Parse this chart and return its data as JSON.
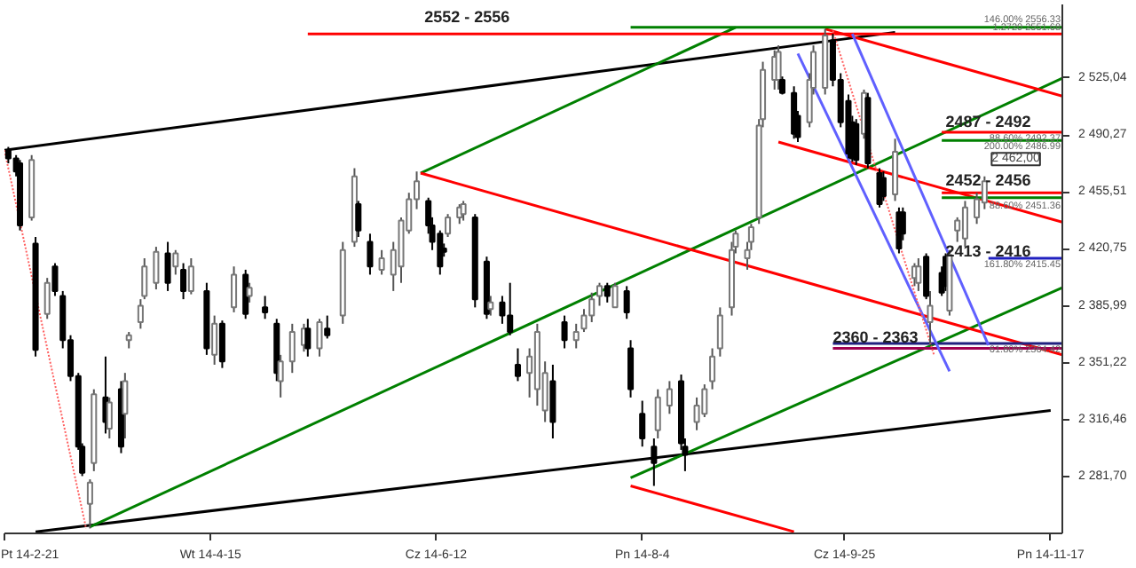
{
  "chart_data": {
    "type": "candlestick",
    "x": [
      "2014-02-22",
      "2014-02-24",
      "2014-02-25",
      "2014-02-28",
      "2014-03-01",
      "2014-03-04",
      "2014-03-06",
      "2014-03-08",
      "2014-03-10",
      "2014-03-12",
      "2014-03-13",
      "2014-03-15",
      "2014-03-16",
      "2014-03-19",
      "2014-03-20",
      "2014-03-23",
      "2014-03-24",
      "2014-03-25",
      "2014-03-28",
      "2014-03-29",
      "2014-04-01",
      "2014-04-04",
      "2014-04-06",
      "2014-04-08",
      "2014-04-10",
      "2014-04-14",
      "2014-04-16",
      "2014-04-18",
      "2014-04-21",
      "2014-04-24",
      "2014-04-25",
      "2014-04-29",
      "2014-05-02",
      "2014-05-03",
      "2014-05-06",
      "2014-05-09",
      "2014-05-10",
      "2014-05-13",
      "2014-05-15",
      "2014-05-19",
      "2014-05-22",
      "2014-05-23",
      "2014-05-26",
      "2014-05-29",
      "2014-06-01",
      "2014-06-03",
      "2014-06-05",
      "2014-06-07",
      "2014-06-10",
      "2014-06-11",
      "2014-06-13",
      "2014-06-14",
      "2014-06-15",
      "2014-06-18",
      "2014-06-19",
      "2014-06-22",
      "2014-06-25",
      "2014-06-26",
      "2014-06-29",
      "2014-07-01",
      "2014-07-03",
      "2014-07-06",
      "2014-07-08",
      "2014-07-10",
      "2014-07-12",
      "2014-07-15",
      "2014-07-18",
      "2014-07-20",
      "2014-07-22",
      "2014-07-24",
      "2014-07-26",
      "2014-07-28",
      "2014-07-31",
      "2014-08-01",
      "2014-08-04",
      "2014-08-07",
      "2014-08-08",
      "2014-08-11",
      "2014-08-14",
      "2014-08-15",
      "2014-08-18",
      "2014-08-20",
      "2014-08-22",
      "2014-08-24",
      "2014-08-27",
      "2014-08-28",
      "2014-08-31",
      "2014-09-01",
      "2014-09-03",
      "2014-09-04",
      "2014-09-07",
      "2014-09-08",
      "2014-09-09",
      "2014-09-12",
      "2014-09-13",
      "2014-09-16",
      "2014-09-17",
      "2014-09-20",
      "2014-09-22",
      "2014-09-24",
      "2014-09-26",
      "2014-09-27",
      "2014-09-28",
      "2014-09-30",
      "2014-10-01",
      "2014-10-04",
      "2014-10-05",
      "2014-10-08",
      "2014-10-09",
      "2014-10-10",
      "2014-10-13",
      "2014-10-14",
      "2014-10-16",
      "2014-10-17",
      "2014-10-20",
      "2014-10-21",
      "2014-10-22",
      "2014-10-24",
      "2014-10-26",
      "2014-10-29",
      "2014-10-31"
    ],
    "ohlc": [
      [
        2481,
        2483,
        2473,
        2476
      ],
      [
        2476,
        2478,
        2465,
        2468
      ],
      [
        2473,
        2475,
        2432,
        2435
      ],
      [
        2440,
        2478,
        2438,
        2475
      ],
      [
        2424,
        2428,
        2355,
        2359
      ],
      [
        2381,
        2403,
        2378,
        2400
      ],
      [
        2410,
        2412,
        2392,
        2395
      ],
      [
        2392,
        2395,
        2360,
        2365
      ],
      [
        2365,
        2368,
        2340,
        2343
      ],
      [
        2343,
        2345,
        2298,
        2300
      ],
      [
        2300,
        2302,
        2282,
        2284
      ],
      [
        2265,
        2280,
        2250,
        2278
      ],
      [
        2290,
        2335,
        2285,
        2332
      ],
      [
        2330,
        2355,
        2308,
        2315
      ],
      [
        2311,
        2330,
        2305,
        2327
      ],
      [
        2335,
        2340,
        2296,
        2300
      ],
      [
        2320,
        2345,
        2305,
        2340
      ],
      [
        2365,
        2370,
        2360,
        2368
      ],
      [
        2376,
        2390,
        2372,
        2386
      ],
      [
        2392,
        2415,
        2390,
        2410
      ],
      [
        2400,
        2422,
        2396,
        2419
      ],
      [
        2418,
        2425,
        2395,
        2400
      ],
      [
        2410,
        2420,
        2405,
        2418
      ],
      [
        2408,
        2412,
        2390,
        2395
      ],
      [
        2395,
        2415,
        2393,
        2410
      ],
      [
        2395,
        2400,
        2356,
        2360
      ],
      [
        2356,
        2380,
        2350,
        2375
      ],
      [
        2375,
        2377,
        2348,
        2352
      ],
      [
        2385,
        2410,
        2382,
        2405
      ],
      [
        2405,
        2408,
        2378,
        2381
      ],
      [
        2392,
        2400,
        2388,
        2397
      ],
      [
        2385,
        2392,
        2378,
        2382
      ],
      [
        2375,
        2378,
        2340,
        2345
      ],
      [
        2340,
        2356,
        2330,
        2352
      ],
      [
        2352,
        2375,
        2345,
        2370
      ],
      [
        2362,
        2375,
        2358,
        2372
      ],
      [
        2372,
        2378,
        2355,
        2360
      ],
      [
        2360,
        2378,
        2355,
        2376
      ],
      [
        2372,
        2380,
        2366,
        2368
      ],
      [
        2380,
        2425,
        2375,
        2420
      ],
      [
        2425,
        2470,
        2422,
        2465
      ],
      [
        2448,
        2450,
        2428,
        2432
      ],
      [
        2425,
        2430,
        2405,
        2410
      ],
      [
        2408,
        2420,
        2405,
        2415
      ],
      [
        2405,
        2425,
        2395,
        2420
      ],
      [
        2410,
        2440,
        2400,
        2438
      ],
      [
        2432,
        2455,
        2430,
        2451
      ],
      [
        2451,
        2468,
        2445,
        2462
      ],
      [
        2450,
        2452,
        2430,
        2435
      ],
      [
        2435,
        2440,
        2420,
        2425
      ],
      [
        2430,
        2432,
        2405,
        2410
      ],
      [
        2421,
        2424,
        2416,
        2419
      ],
      [
        2430,
        2442,
        2428,
        2440
      ],
      [
        2440,
        2448,
        2436,
        2446
      ],
      [
        2442,
        2450,
        2438,
        2448
      ],
      [
        2440,
        2442,
        2385,
        2390
      ],
      [
        2413,
        2416,
        2378,
        2381
      ],
      [
        2384,
        2392,
        2380,
        2388
      ],
      [
        2388,
        2392,
        2375,
        2380
      ],
      [
        2380,
        2400,
        2368,
        2370
      ],
      [
        2350,
        2360,
        2340,
        2343
      ],
      [
        2345,
        2360,
        2330,
        2355
      ],
      [
        2335,
        2375,
        2325,
        2370
      ],
      [
        2322,
        2352,
        2315,
        2345
      ],
      [
        2340,
        2350,
        2305,
        2315
      ],
      [
        2376,
        2380,
        2360,
        2365
      ],
      [
        2365,
        2375,
        2360,
        2370
      ],
      [
        2372,
        2384,
        2370,
        2380
      ],
      [
        2380,
        2394,
        2376,
        2390
      ],
      [
        2392,
        2400,
        2386,
        2398
      ],
      [
        2398,
        2400,
        2388,
        2392
      ],
      [
        2385,
        2400,
        2385,
        2398
      ],
      [
        2395,
        2398,
        2378,
        2382
      ],
      [
        2360,
        2365,
        2330,
        2335
      ],
      [
        2320,
        2328,
        2300,
        2305
      ],
      [
        2300,
        2305,
        2276,
        2290
      ],
      [
        2310,
        2335,
        2305,
        2330
      ],
      [
        2325,
        2340,
        2320,
        2335
      ],
      [
        2340,
        2344,
        2298,
        2302
      ],
      [
        2300,
        2305,
        2285,
        2295
      ],
      [
        2315,
        2330,
        2310,
        2325
      ],
      [
        2320,
        2338,
        2318,
        2335
      ],
      [
        2340,
        2360,
        2335,
        2355
      ],
      [
        2360,
        2385,
        2355,
        2380
      ],
      [
        2385,
        2425,
        2380,
        2420
      ],
      [
        2422,
        2432,
        2418,
        2430
      ],
      [
        2415,
        2425,
        2408,
        2420
      ],
      [
        2425,
        2436,
        2420,
        2434
      ],
      [
        2440,
        2500,
        2436,
        2496
      ],
      [
        2500,
        2535,
        2495,
        2530
      ],
      [
        2524,
        2542,
        2518,
        2538
      ],
      [
        2524,
        2545,
        2518,
        2541
      ],
      [
        2524,
        2526,
        2515,
        2516
      ],
      [
        2516,
        2520,
        2488,
        2491
      ],
      [
        2502,
        2505,
        2486,
        2489
      ],
      [
        2498,
        2528,
        2495,
        2524
      ],
      [
        2519,
        2545,
        2515,
        2541
      ],
      [
        2519,
        2555,
        2515,
        2551
      ],
      [
        2548,
        2552,
        2520,
        2524
      ],
      [
        2524,
        2528,
        2495,
        2498
      ],
      [
        2511,
        2515,
        2476,
        2479
      ],
      [
        2498,
        2502,
        2474,
        2476
      ],
      [
        2497,
        2500,
        2472,
        2475
      ],
      [
        2491,
        2518,
        2488,
        2516
      ],
      [
        2513,
        2516,
        2470,
        2473
      ],
      [
        2467,
        2470,
        2446,
        2448
      ],
      [
        2464,
        2468,
        2450,
        2453
      ],
      [
        2454,
        2488,
        2450,
        2480
      ],
      [
        2443,
        2446,
        2418,
        2421
      ],
      [
        2443,
        2446,
        2426,
        2430
      ],
      [
        2403,
        2412,
        2398,
        2410
      ],
      [
        2400,
        2415,
        2395,
        2410
      ],
      [
        2416,
        2418,
        2390,
        2392
      ],
      [
        2376,
        2395,
        2363,
        2386
      ],
      [
        2406,
        2410,
        2392,
        2394
      ],
      [
        2416,
        2418,
        2395,
        2398
      ],
      [
        2383,
        2420,
        2380,
        2417
      ],
      [
        2432,
        2440,
        2425,
        2438
      ],
      [
        2427,
        2450,
        2422,
        2446
      ],
      [
        2440,
        2455,
        2436,
        2451
      ],
      [
        2449,
        2465,
        2445,
        2462
      ]
    ],
    "series": [
      {
        "type": "line",
        "x": [
          "2014-02-21",
          "2014-10-08"
        ],
        "values": [
          2481,
          2553
        ],
        "color": "#000000"
      },
      {
        "type": "line",
        "x": [
          "2014-03-01",
          "2014-11-17"
        ],
        "values": [
          2248,
          2322
        ],
        "color": "#000000"
      },
      {
        "type": "line",
        "x": [
          "2014-03-15",
          "2014-11-20"
        ],
        "values": [
          2251,
          2525
        ],
        "color": "#008000"
      },
      {
        "type": "line",
        "x": [
          "2014-06-08",
          "2014-08-28"
        ],
        "values": [
          2467,
          2556
        ],
        "color": "#008000"
      },
      {
        "type": "line",
        "x": [
          "2014-08-01",
          "2014-11-20"
        ],
        "values": [
          2281,
          2397
        ],
        "color": "#008000"
      },
      {
        "type": "line",
        "x": [
          "2014-06-08",
          "2014-11-20"
        ],
        "values": [
          2467,
          2356
        ],
        "color": "#ff0000"
      },
      {
        "type": "line",
        "x": [
          "2014-09-08",
          "2014-11-20"
        ],
        "values": [
          2486,
          2437
        ],
        "color": "#ff0000"
      },
      {
        "type": "line",
        "x": [
          "2014-09-20",
          "2014-11-20"
        ],
        "values": [
          2555,
          2514
        ],
        "color": "#ff0000"
      },
      {
        "type": "line",
        "x": [
          "2014-08-01",
          "2014-09-12"
        ],
        "values": [
          2276,
          2248
        ],
        "color": "#ff0000"
      },
      {
        "type": "line",
        "x": [
          "2014-05-10",
          "2014-11-20"
        ],
        "values": [
          2552,
          2552
        ],
        "color": "#ff0000"
      },
      {
        "type": "line",
        "x": [
          "2014-08-01",
          "2014-11-20"
        ],
        "values": [
          2556,
          2556
        ],
        "color": "#008000"
      },
      {
        "type": "line",
        "x": [
          "2014-10-20",
          "2014-11-20"
        ],
        "values": [
          2492,
          2492
        ],
        "color": "#ff0000"
      },
      {
        "type": "line",
        "x": [
          "2014-10-20",
          "2014-11-20"
        ],
        "values": [
          2487,
          2487
        ],
        "color": "#008000"
      },
      {
        "type": "line",
        "x": [
          "2014-10-20",
          "2014-11-20"
        ],
        "values": [
          2455,
          2455
        ],
        "color": "#ff0000"
      },
      {
        "type": "line",
        "x": [
          "2014-10-20",
          "2014-11-20"
        ],
        "values": [
          2452,
          2452
        ],
        "color": "#008000"
      },
      {
        "type": "line",
        "x": [
          "2014-11-01",
          "2014-11-20"
        ],
        "values": [
          2415,
          2415
        ],
        "color": "#2020c0"
      },
      {
        "type": "line",
        "x": [
          "2014-09-22",
          "2014-11-20"
        ],
        "values": [
          2363,
          2363
        ],
        "color": "#202080"
      },
      {
        "type": "line",
        "x": [
          "2014-09-22",
          "2014-11-20"
        ],
        "values": [
          2360,
          2360
        ],
        "color": "#a00050"
      },
      {
        "type": "line",
        "x": [
          "2014-09-13",
          "2014-10-22"
        ],
        "values": [
          2540,
          2346
        ],
        "color": "#6060ff"
      },
      {
        "type": "line",
        "x": [
          "2014-09-27",
          "2014-11-01"
        ],
        "values": [
          2552,
          2362
        ],
        "color": "#6060ff"
      },
      {
        "type": "line",
        "x": [
          "2014-02-21",
          "2014-03-14"
        ],
        "values": [
          2481,
          2250
        ],
        "color": "#ff6060",
        "line_style": "dotted"
      },
      {
        "type": "line",
        "x": [
          "2014-09-22",
          "2014-10-18"
        ],
        "values": [
          2554,
          2356
        ],
        "color": "#ff6060",
        "line_style": "dotted"
      }
    ],
    "xlim": [
      "2014-02-21",
      "2014-11-20"
    ],
    "ylim": [
      2247,
      2570
    ],
    "xticks": [
      {
        "value": "2014-02-21",
        "label": "Pt 14-2-21"
      },
      {
        "value": "2014-04-15",
        "label": "Wt 14-4-15"
      },
      {
        "value": "2014-06-12",
        "label": "Cz 14-6-12"
      },
      {
        "value": "2014-08-04",
        "label": "Pn 14-8-4"
      },
      {
        "value": "2014-09-25",
        "label": "Cz 14-9-25"
      },
      {
        "value": "2014-11-17",
        "label": "Pn 14-11-17"
      }
    ],
    "yticks": [
      {
        "value": 2281.7,
        "label": "2 281,70"
      },
      {
        "value": 2316.46,
        "label": "2 316,46"
      },
      {
        "value": 2351.22,
        "label": "2 351,22"
      },
      {
        "value": 2385.99,
        "label": "2 385,99"
      },
      {
        "value": 2420.75,
        "label": "2 420,75"
      },
      {
        "value": 2455.51,
        "label": "2 455,51"
      },
      {
        "value": 2490.27,
        "label": "2 490,27"
      },
      {
        "value": 2525.04,
        "label": "2 525,04"
      }
    ],
    "annotations": [
      {
        "text": "2552 - 2556",
        "x": "2014-06-09",
        "y": 2556
      },
      {
        "text": "2487 - 2492",
        "x": "2014-10-21",
        "y": 2492
      },
      {
        "text": "2452 - 2456",
        "x": "2014-10-21",
        "y": 2456
      },
      {
        "text": "2413 - 2416",
        "x": "2014-10-21",
        "y": 2413
      },
      {
        "text": "2360 - 2363",
        "x": "2014-09-22",
        "y": 2360
      },
      {
        "text": "146.00% 2556.33",
        "x": "2014-11-20",
        "y": 2556
      },
      {
        "text": "1.2720 2551.68",
        "x": "2014-11-20",
        "y": 2551
      },
      {
        "text": "88.60% 2492.37",
        "x": "2014-11-20",
        "y": 2492
      },
      {
        "text": "200.00% 2486.99",
        "x": "2014-11-20",
        "y": 2487
      },
      {
        "text": "88.60% 2451.36",
        "x": "2014-11-20",
        "y": 2451
      },
      {
        "text": "161.80% 2415.45",
        "x": "2014-11-20",
        "y": 2415
      },
      {
        "text": "61.80% 2364.42",
        "x": "2014-11-20",
        "y": 2363
      },
      {
        "text": "2 462,00",
        "x": "2014-10-31",
        "y": 2462
      }
    ]
  }
}
